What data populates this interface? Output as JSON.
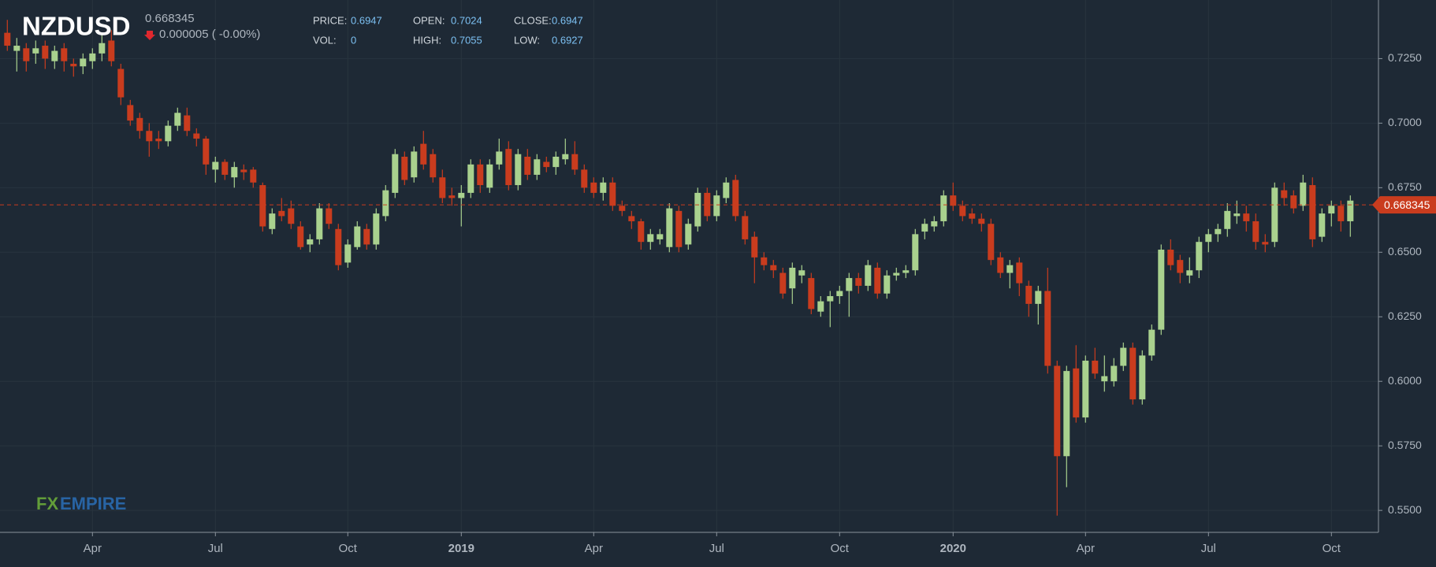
{
  "header": {
    "symbol": "NZDUSD",
    "last_price": 0.668345,
    "change": "0.000005 ( -0.00%)"
  },
  "info": [
    {
      "label": "PRICE:",
      "value": 0.6947
    },
    {
      "label": "OPEN:",
      "value": 0.7024
    },
    {
      "label": "CLOSE:",
      "value": 0.6947
    },
    {
      "label": "VOL:",
      "value": 0
    },
    {
      "label": "HIGH:",
      "value": 0.7055
    },
    {
      "label": "LOW:",
      "value": 0.6927
    }
  ],
  "watermark": {
    "part1": "FX",
    "part2": "EMPIRE"
  },
  "chart_data": {
    "type": "candlestick",
    "up_color": "#a9d18e",
    "down_color": "#c93c1e",
    "grid": true,
    "ylim": [
      0.5415,
      0.7477
    ],
    "yticks": [
      {
        "value": 0.55,
        "label": "0.5500"
      },
      {
        "value": 0.575,
        "label": "0.5750"
      },
      {
        "value": 0.6,
        "label": "0.6000"
      },
      {
        "value": 0.625,
        "label": "0.6250"
      },
      {
        "value": 0.65,
        "label": "0.6500"
      },
      {
        "value": 0.675,
        "label": "0.6750"
      },
      {
        "value": 0.7,
        "label": "0.7000"
      },
      {
        "value": 0.725,
        "label": "0.7250"
      }
    ],
    "last_price": 0.668345,
    "categories": [
      null,
      null,
      null,
      null,
      null,
      null,
      null,
      null,
      null,
      "Apr",
      null,
      null,
      null,
      null,
      null,
      null,
      null,
      null,
      null,
      null,
      null,
      null,
      "Jul",
      null,
      null,
      null,
      null,
      null,
      null,
      null,
      null,
      null,
      null,
      null,
      null,
      null,
      "Oct",
      null,
      null,
      null,
      null,
      null,
      null,
      null,
      null,
      null,
      null,
      null,
      "2019",
      null,
      null,
      null,
      null,
      null,
      null,
      null,
      null,
      null,
      null,
      null,
      null,
      null,
      "Apr",
      null,
      null,
      null,
      null,
      null,
      null,
      null,
      null,
      null,
      null,
      null,
      null,
      "Jul",
      null,
      null,
      null,
      null,
      null,
      null,
      null,
      null,
      null,
      null,
      null,
      null,
      "Oct",
      null,
      null,
      null,
      null,
      null,
      null,
      null,
      null,
      null,
      null,
      null,
      "2020",
      null,
      null,
      null,
      null,
      null,
      null,
      null,
      null,
      null,
      null,
      null,
      null,
      null,
      "Apr",
      null,
      null,
      null,
      null,
      null,
      null,
      null,
      null,
      null,
      null,
      null,
      null,
      "Jul",
      null,
      null,
      null,
      null,
      null,
      null,
      null,
      null,
      null,
      null,
      null,
      null,
      "Oct",
      null,
      null
    ],
    "candles": [
      [
        0.735,
        0.74,
        0.728,
        0.73
      ],
      [
        0.728,
        0.733,
        0.72,
        0.73
      ],
      [
        0.729,
        0.731,
        0.72,
        0.724
      ],
      [
        0.727,
        0.732,
        0.723,
        0.729
      ],
      [
        0.73,
        0.732,
        0.721,
        0.725
      ],
      [
        0.724,
        0.73,
        0.721,
        0.728
      ],
      [
        0.729,
        0.731,
        0.72,
        0.724
      ],
      [
        0.723,
        0.725,
        0.718,
        0.722
      ],
      [
        0.722,
        0.727,
        0.719,
        0.725
      ],
      [
        0.724,
        0.729,
        0.721,
        0.727
      ],
      [
        0.727,
        0.735,
        0.724,
        0.731
      ],
      [
        0.732,
        0.736,
        0.722,
        0.724
      ],
      [
        0.721,
        0.723,
        0.707,
        0.71
      ],
      [
        0.707,
        0.709,
        0.699,
        0.701
      ],
      [
        0.702,
        0.704,
        0.694,
        0.697
      ],
      [
        0.697,
        0.7,
        0.687,
        0.693
      ],
      [
        0.694,
        0.697,
        0.69,
        0.693
      ],
      [
        0.693,
        0.701,
        0.691,
        0.699
      ],
      [
        0.699,
        0.706,
        0.697,
        0.704
      ],
      [
        0.703,
        0.706,
        0.695,
        0.697
      ],
      [
        0.696,
        0.698,
        0.691,
        0.694
      ],
      [
        0.694,
        0.695,
        0.68,
        0.684
      ],
      [
        0.682,
        0.687,
        0.677,
        0.685
      ],
      [
        0.685,
        0.686,
        0.678,
        0.68
      ],
      [
        0.679,
        0.685,
        0.675,
        0.683
      ],
      [
        0.682,
        0.684,
        0.678,
        0.681
      ],
      [
        0.682,
        0.683,
        0.675,
        0.677
      ],
      [
        0.676,
        0.677,
        0.658,
        0.66
      ],
      [
        0.659,
        0.667,
        0.657,
        0.665
      ],
      [
        0.666,
        0.671,
        0.662,
        0.664
      ],
      [
        0.667,
        0.67,
        0.659,
        0.661
      ],
      [
        0.66,
        0.662,
        0.651,
        0.652
      ],
      [
        0.653,
        0.657,
        0.65,
        0.655
      ],
      [
        0.655,
        0.669,
        0.653,
        0.667
      ],
      [
        0.667,
        0.669,
        0.659,
        0.661
      ],
      [
        0.659,
        0.661,
        0.643,
        0.645
      ],
      [
        0.646,
        0.655,
        0.644,
        0.653
      ],
      [
        0.652,
        0.662,
        0.651,
        0.66
      ],
      [
        0.659,
        0.661,
        0.651,
        0.653
      ],
      [
        0.653,
        0.667,
        0.651,
        0.665
      ],
      [
        0.664,
        0.676,
        0.662,
        0.674
      ],
      [
        0.673,
        0.69,
        0.671,
        0.688
      ],
      [
        0.687,
        0.689,
        0.676,
        0.678
      ],
      [
        0.679,
        0.691,
        0.677,
        0.689
      ],
      [
        0.692,
        0.697,
        0.682,
        0.684
      ],
      [
        0.688,
        0.69,
        0.677,
        0.679
      ],
      [
        0.679,
        0.682,
        0.669,
        0.671
      ],
      [
        0.672,
        0.675,
        0.668,
        0.671
      ],
      [
        0.671,
        0.676,
        0.66,
        0.673
      ],
      [
        0.673,
        0.686,
        0.671,
        0.684
      ],
      [
        0.684,
        0.686,
        0.673,
        0.676
      ],
      [
        0.675,
        0.686,
        0.673,
        0.684
      ],
      [
        0.684,
        0.694,
        0.682,
        0.689
      ],
      [
        0.69,
        0.693,
        0.674,
        0.676
      ],
      [
        0.676,
        0.69,
        0.674,
        0.688
      ],
      [
        0.687,
        0.69,
        0.678,
        0.68
      ],
      [
        0.68,
        0.688,
        0.678,
        0.686
      ],
      [
        0.685,
        0.687,
        0.681,
        0.683
      ],
      [
        0.683,
        0.689,
        0.68,
        0.687
      ],
      [
        0.686,
        0.694,
        0.684,
        0.688
      ],
      [
        0.688,
        0.693,
        0.68,
        0.682
      ],
      [
        0.682,
        0.684,
        0.673,
        0.675
      ],
      [
        0.677,
        0.679,
        0.671,
        0.673
      ],
      [
        0.673,
        0.679,
        0.67,
        0.677
      ],
      [
        0.677,
        0.679,
        0.666,
        0.668
      ],
      [
        0.668,
        0.67,
        0.664,
        0.666
      ],
      [
        0.664,
        0.666,
        0.659,
        0.662
      ],
      [
        0.662,
        0.663,
        0.651,
        0.654
      ],
      [
        0.654,
        0.659,
        0.651,
        0.657
      ],
      [
        0.655,
        0.659,
        0.653,
        0.657
      ],
      [
        0.652,
        0.669,
        0.65,
        0.667
      ],
      [
        0.666,
        0.668,
        0.65,
        0.652
      ],
      [
        0.653,
        0.663,
        0.651,
        0.661
      ],
      [
        0.66,
        0.675,
        0.658,
        0.673
      ],
      [
        0.673,
        0.675,
        0.662,
        0.664
      ],
      [
        0.664,
        0.674,
        0.662,
        0.672
      ],
      [
        0.671,
        0.679,
        0.669,
        0.677
      ],
      [
        0.678,
        0.68,
        0.662,
        0.664
      ],
      [
        0.664,
        0.666,
        0.653,
        0.655
      ],
      [
        0.656,
        0.658,
        0.638,
        0.648
      ],
      [
        0.648,
        0.65,
        0.643,
        0.645
      ],
      [
        0.645,
        0.647,
        0.64,
        0.643
      ],
      [
        0.642,
        0.644,
        0.632,
        0.634
      ],
      [
        0.636,
        0.646,
        0.63,
        0.644
      ],
      [
        0.641,
        0.645,
        0.638,
        0.643
      ],
      [
        0.64,
        0.642,
        0.626,
        0.628
      ],
      [
        0.627,
        0.633,
        0.625,
        0.631
      ],
      [
        0.631,
        0.635,
        0.621,
        0.633
      ],
      [
        0.633,
        0.637,
        0.63,
        0.635
      ],
      [
        0.635,
        0.642,
        0.625,
        0.64
      ],
      [
        0.64,
        0.642,
        0.634,
        0.637
      ],
      [
        0.637,
        0.647,
        0.635,
        0.645
      ],
      [
        0.644,
        0.646,
        0.632,
        0.634
      ],
      [
        0.634,
        0.643,
        0.632,
        0.641
      ],
      [
        0.641,
        0.644,
        0.639,
        0.642
      ],
      [
        0.642,
        0.645,
        0.64,
        0.643
      ],
      [
        0.643,
        0.659,
        0.641,
        0.657
      ],
      [
        0.658,
        0.663,
        0.655,
        0.661
      ],
      [
        0.66,
        0.664,
        0.658,
        0.662
      ],
      [
        0.662,
        0.674,
        0.66,
        0.672
      ],
      [
        0.672,
        0.677,
        0.666,
        0.668
      ],
      [
        0.668,
        0.67,
        0.662,
        0.664
      ],
      [
        0.665,
        0.667,
        0.661,
        0.663
      ],
      [
        0.663,
        0.665,
        0.658,
        0.661
      ],
      [
        0.661,
        0.663,
        0.645,
        0.647
      ],
      [
        0.648,
        0.65,
        0.64,
        0.642
      ],
      [
        0.642,
        0.647,
        0.636,
        0.645
      ],
      [
        0.646,
        0.648,
        0.633,
        0.638
      ],
      [
        0.637,
        0.639,
        0.625,
        0.63
      ],
      [
        0.63,
        0.637,
        0.622,
        0.635
      ],
      [
        0.635,
        0.644,
        0.603,
        0.606
      ],
      [
        0.606,
        0.608,
        0.548,
        0.571
      ],
      [
        0.571,
        0.606,
        0.559,
        0.604
      ],
      [
        0.605,
        0.614,
        0.584,
        0.586
      ],
      [
        0.586,
        0.61,
        0.584,
        0.608
      ],
      [
        0.608,
        0.613,
        0.601,
        0.603
      ],
      [
        0.6,
        0.61,
        0.596,
        0.602
      ],
      [
        0.6,
        0.609,
        0.598,
        0.606
      ],
      [
        0.606,
        0.615,
        0.604,
        0.613
      ],
      [
        0.613,
        0.615,
        0.591,
        0.593
      ],
      [
        0.593,
        0.612,
        0.591,
        0.61
      ],
      [
        0.61,
        0.622,
        0.608,
        0.62
      ],
      [
        0.62,
        0.653,
        0.618,
        0.651
      ],
      [
        0.651,
        0.655,
        0.643,
        0.645
      ],
      [
        0.647,
        0.649,
        0.638,
        0.642
      ],
      [
        0.641,
        0.648,
        0.638,
        0.643
      ],
      [
        0.643,
        0.656,
        0.64,
        0.654
      ],
      [
        0.654,
        0.659,
        0.65,
        0.657
      ],
      [
        0.657,
        0.661,
        0.654,
        0.659
      ],
      [
        0.659,
        0.669,
        0.656,
        0.666
      ],
      [
        0.664,
        0.67,
        0.661,
        0.665
      ],
      [
        0.665,
        0.668,
        0.658,
        0.662
      ],
      [
        0.662,
        0.665,
        0.651,
        0.654
      ],
      [
        0.654,
        0.657,
        0.65,
        0.653
      ],
      [
        0.654,
        0.677,
        0.652,
        0.675
      ],
      [
        0.674,
        0.677,
        0.668,
        0.671
      ],
      [
        0.672,
        0.674,
        0.665,
        0.667
      ],
      [
        0.668,
        0.68,
        0.666,
        0.677
      ],
      [
        0.676,
        0.679,
        0.652,
        0.655
      ],
      [
        0.656,
        0.667,
        0.654,
        0.665
      ],
      [
        0.665,
        0.67,
        0.66,
        0.668
      ],
      [
        0.668,
        0.67,
        0.658,
        0.662
      ],
      [
        0.662,
        0.672,
        0.656,
        0.67
      ]
    ]
  }
}
